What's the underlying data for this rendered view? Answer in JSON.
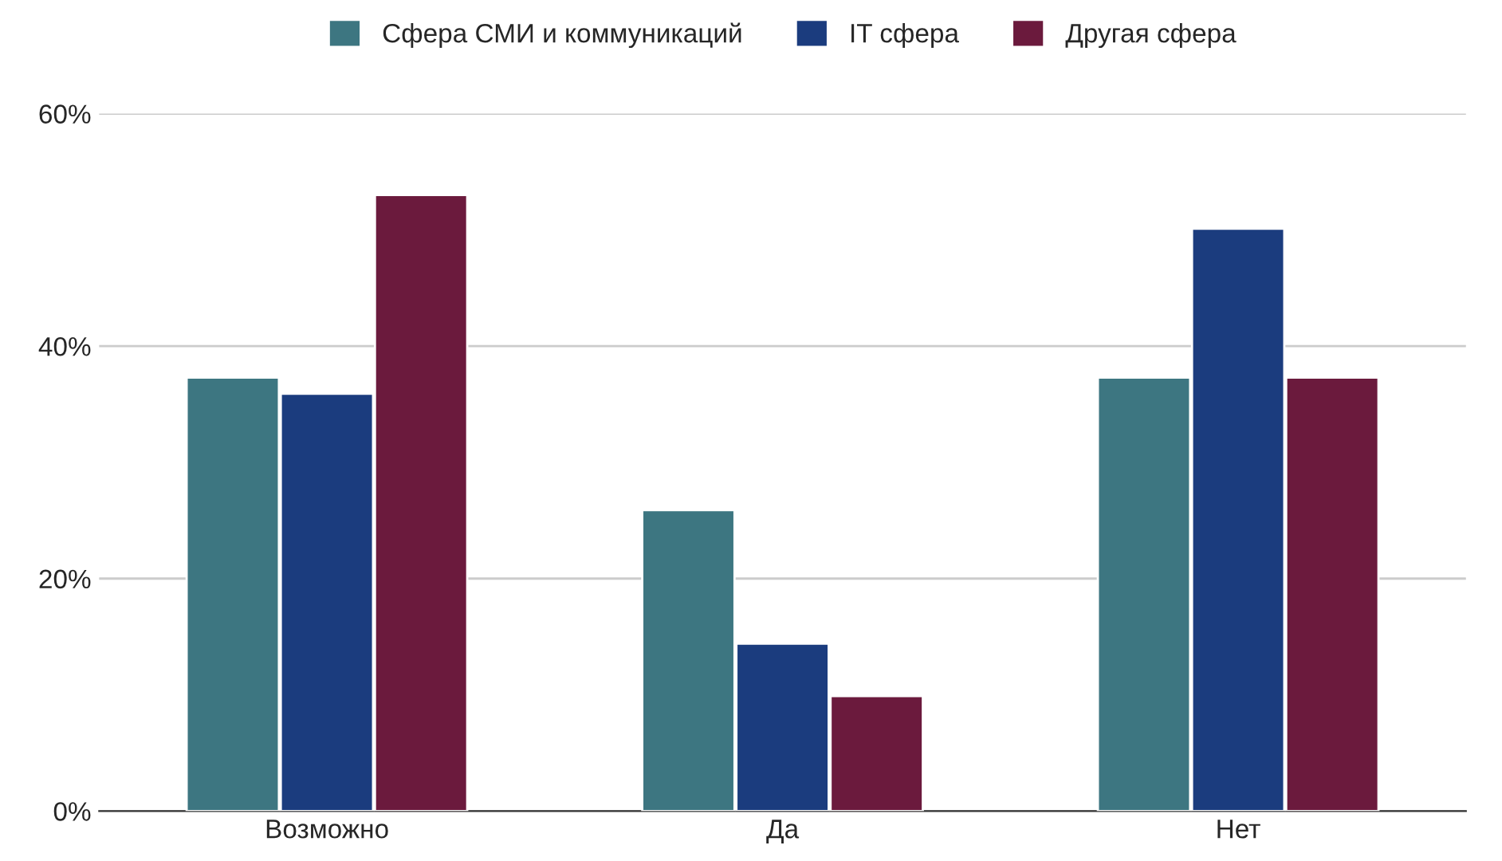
{
  "chart_data": {
    "type": "bar",
    "categories": [
      "Возможно",
      "Да",
      "Нет"
    ],
    "series": [
      {
        "name": "Сфера СМИ и коммуникаций",
        "color": "#3d7681",
        "values": [
          37.3,
          25.9,
          37.3
        ]
      },
      {
        "name": "IT сфера",
        "color": "#1b3c7e",
        "values": [
          35.9,
          14.4,
          50.1
        ]
      },
      {
        "name": "Другая сфера",
        "color": "#6b1a3d",
        "values": [
          53.0,
          9.9,
          37.3
        ]
      }
    ],
    "ylim": [
      0,
      60
    ],
    "yticks": [
      {
        "value": 0,
        "label": "0%"
      },
      {
        "value": 20,
        "label": "20%"
      },
      {
        "value": 40,
        "label": "40%"
      },
      {
        "value": 60,
        "label": "60%"
      }
    ],
    "grid": "y",
    "legend": "top"
  }
}
